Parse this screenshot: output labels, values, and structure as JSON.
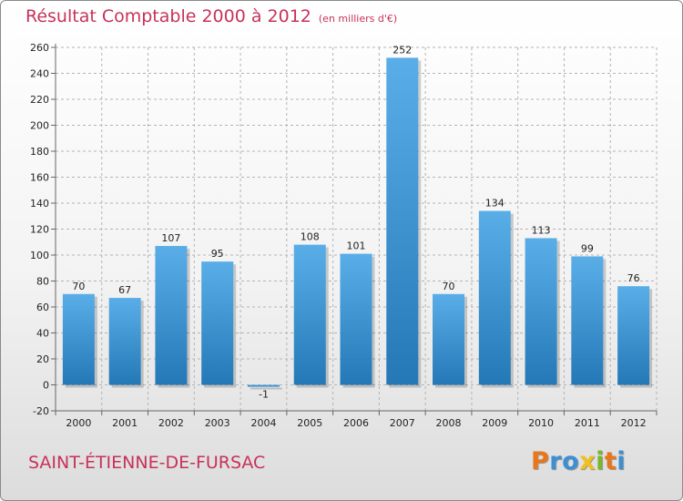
{
  "header": {
    "title": "Résultat Comptable 2000 à 2012",
    "unit": "(en milliers d'€)"
  },
  "footer": {
    "commune": "SAINT-ÉTIENNE-DE-FURSAC",
    "logo_letters": [
      "P",
      "r",
      "o",
      "x",
      "i",
      "t",
      "i"
    ]
  },
  "colors": {
    "bar_top": "#5aaee8",
    "bar_bottom": "#2478b6",
    "title": "#c8325a",
    "grid": "#b4b4b4"
  },
  "chart_data": {
    "type": "bar",
    "title": "Résultat Comptable 2000 à 2012",
    "ylabel": "(en milliers d'€)",
    "xlabel": "",
    "categories": [
      "2000",
      "2001",
      "2002",
      "2003",
      "2004",
      "2005",
      "2006",
      "2007",
      "2008",
      "2009",
      "2010",
      "2011",
      "2012"
    ],
    "values": [
      70,
      67,
      107,
      95,
      -1,
      108,
      101,
      252,
      70,
      134,
      113,
      99,
      76
    ],
    "labels": [
      "70",
      "67",
      "107",
      "95",
      "-1",
      "108",
      "101",
      "252",
      "70",
      "134",
      "113",
      "99",
      "76"
    ],
    "ylim": [
      -20,
      260
    ],
    "yticks": [
      -20,
      0,
      20,
      40,
      60,
      80,
      100,
      120,
      140,
      160,
      180,
      200,
      220,
      240,
      260
    ],
    "grid": true,
    "legend": "none"
  }
}
